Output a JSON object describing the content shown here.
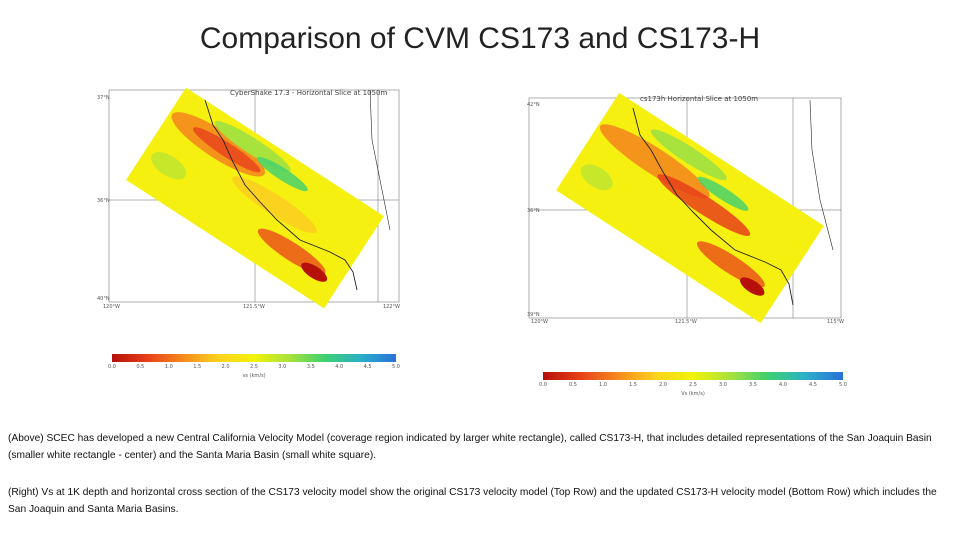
{
  "slide": {
    "title": "Comparison of CVM CS173 and CS173-H"
  },
  "left_map": {
    "caption": "CyberShake 17.3 - Horizontal Slice at 1050m",
    "lat_labels": [
      "37°N",
      "36°N",
      "40°N"
    ],
    "lon_labels": [
      "120°W",
      "121.5°W",
      "122°W"
    ]
  },
  "right_map": {
    "caption": "cs173h Horizontal Slice at 1050m",
    "lat_labels": [
      "42°N",
      "36°N",
      "39°N"
    ],
    "lon_labels": [
      "120°W",
      "121.5°W",
      "115°W"
    ]
  },
  "left_colorbar": {
    "ticks": [
      "0.0",
      "0.5",
      "1.0",
      "1.5",
      "2.0",
      "2.5",
      "3.0",
      "3.5",
      "4.0",
      "4.5",
      "5.0"
    ],
    "label": "vs (km/s)"
  },
  "right_colorbar": {
    "ticks": [
      "0.0",
      "0.5",
      "1.0",
      "1.5",
      "2.0",
      "2.5",
      "3.0",
      "3.5",
      "4.0",
      "4.5",
      "5.0"
    ],
    "label": "Vs (km/s)"
  },
  "colors": {
    "scale": [
      "#b5100a",
      "#e8401a",
      "#f58a1c",
      "#fbd21e",
      "#f2f20a",
      "#a8e23c",
      "#3ed070",
      "#2ab0c8",
      "#2a70d8"
    ],
    "background_field": "#f5f010"
  },
  "text": {
    "paragraph1": "(Above) SCEC has developed a new Central California Velocity Model (coverage region indicated by larger white rectangle), called CS173-H, that includes detailed representations of the San Joaquin Basin (smaller white rectangle - center) and the Santa Maria Basin (small white square).",
    "paragraph2": "(Right) Vs at 1K depth and horizontal cross section of the CS173 velocity model show the original CS173 velocity model (Top Row) and the updated CS173-H velocity model (Bottom Row) which includes the San Joaquin and Santa Maria Basins."
  }
}
